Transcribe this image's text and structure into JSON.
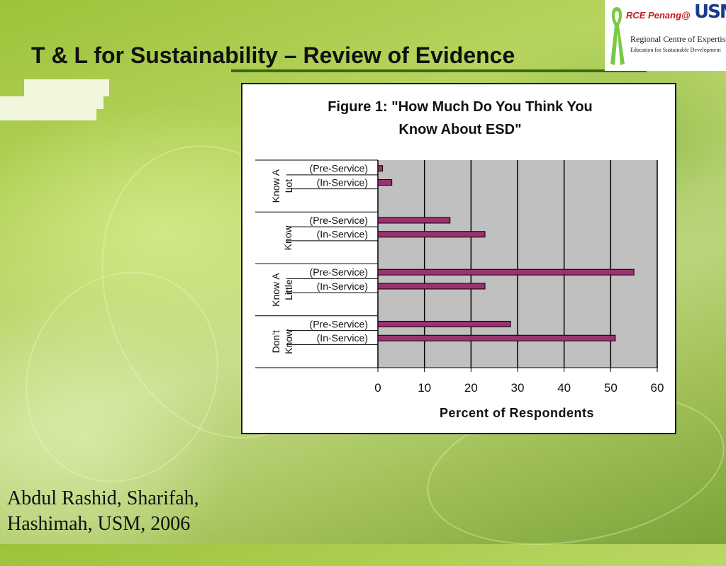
{
  "slide": {
    "title": "T & L for Sustainability – Review of Evidence",
    "credit_line1": "Abdul Rashid, Sharifah,",
    "credit_line2": "Hashimah, USM, 2006"
  },
  "logo": {
    "rce_text": "RCE Penang@",
    "usm_text": "USM",
    "centre_text": "Regional Centre of Expertise",
    "education_text": "Education for Sustainable Development"
  },
  "colors": {
    "bar_fill": "#99336f",
    "plot_bg": "#c0c0c0",
    "title_underline": "#3d6b12"
  },
  "chart_data": {
    "type": "bar",
    "orientation": "horizontal",
    "title_line1": "Figure 1: \"How Much Do You Think You",
    "title_line2": "Know About ESD\"",
    "xlabel": "Percent of Respondents",
    "xlim": [
      0,
      60
    ],
    "xticks": [
      0,
      10,
      20,
      30,
      40,
      50,
      60
    ],
    "grid": "vertical",
    "groups": [
      {
        "label_line1": "Know A",
        "label_line2": "Lot",
        "bars": [
          {
            "label": "(Pre-Service)",
            "value": 1
          },
          {
            "label": "(In-Service)",
            "value": 3
          }
        ]
      },
      {
        "label_line1": "Know",
        "label_line2": "",
        "bars": [
          {
            "label": "(Pre-Service)",
            "value": 15.5
          },
          {
            "label": "(In-Service)",
            "value": 23
          }
        ]
      },
      {
        "label_line1": "Know A",
        "label_line2": "Little",
        "bars": [
          {
            "label": "(Pre-Service)",
            "value": 55
          },
          {
            "label": "(In-Service)",
            "value": 23
          }
        ]
      },
      {
        "label_line1": "Don't",
        "label_line2": "Know",
        "bars": [
          {
            "label": "(Pre-Service)",
            "value": 28.5
          },
          {
            "label": "(In-Service)",
            "value": 51
          }
        ]
      }
    ]
  }
}
